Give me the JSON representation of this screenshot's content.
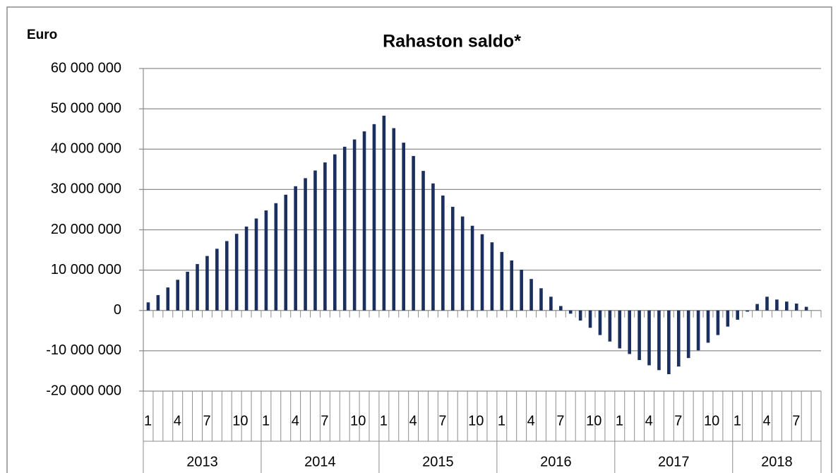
{
  "chart_data": {
    "type": "bar",
    "title": "Rahaston saldo*",
    "y_axis_label": "Euro",
    "color": "#1a2f5e",
    "grid": true,
    "ylim": [
      -20000000,
      60000000
    ],
    "yticks": [
      {
        "value": 60000000,
        "label": "60 000 000"
      },
      {
        "value": 50000000,
        "label": "50 000 000"
      },
      {
        "value": 40000000,
        "label": "40 000 000"
      },
      {
        "value": 30000000,
        "label": "30 000 000"
      },
      {
        "value": 20000000,
        "label": "20 000 000"
      },
      {
        "value": 10000000,
        "label": "10 000 000"
      },
      0,
      {
        "value": -10000000,
        "label": "-10 000 000"
      },
      {
        "value": -20000000,
        "label": "-20 000 000"
      }
    ],
    "categories": [
      "1",
      null,
      null,
      "4",
      null,
      null,
      "7",
      null,
      null,
      "10",
      null,
      null,
      "1",
      null,
      null,
      "4",
      null,
      null,
      "7",
      null,
      null,
      "10",
      null,
      null,
      "1",
      null,
      null,
      "4",
      null,
      null,
      "7",
      null,
      null,
      "10",
      null,
      null,
      "1",
      null,
      null,
      "4",
      null,
      null,
      "7",
      null,
      null,
      "10",
      null,
      null,
      "1",
      null,
      null,
      "4",
      null,
      null,
      "7",
      null,
      null,
      "10",
      null,
      null,
      "1",
      null,
      null,
      "4",
      null,
      null,
      "7",
      null,
      null
    ],
    "year_groups": [
      {
        "label": "2013",
        "count": 12
      },
      {
        "label": "2014",
        "count": 12
      },
      {
        "label": "2015",
        "count": 12
      },
      {
        "label": "2016",
        "count": 12
      },
      {
        "label": "2017",
        "count": 12
      },
      {
        "label": "2018",
        "count": 9
      }
    ],
    "values": [
      2000000,
      3800000,
      5700000,
      7600000,
      9600000,
      11500000,
      13500000,
      15300000,
      17200000,
      19000000,
      20800000,
      22800000,
      24800000,
      26600000,
      28700000,
      30800000,
      32800000,
      34700000,
      36700000,
      38700000,
      40600000,
      42400000,
      44400000,
      46200000,
      48300000,
      45200000,
      41600000,
      38300000,
      34600000,
      31500000,
      28500000,
      25700000,
      23300000,
      21000000,
      18900000,
      16900000,
      14500000,
      12400000,
      10100000,
      7800000,
      5500000,
      3400000,
      1100000,
      -800000,
      -2500000,
      -4300000,
      -6100000,
      -7700000,
      -9400000,
      -10800000,
      -12300000,
      -13600000,
      -14800000,
      -15800000,
      -13900000,
      -11800000,
      -9900000,
      -8000000,
      -6100000,
      -4000000,
      -2300000,
      -300000,
      1600000,
      3400000,
      2700000,
      2200000,
      1700000,
      900000,
      null
    ]
  }
}
